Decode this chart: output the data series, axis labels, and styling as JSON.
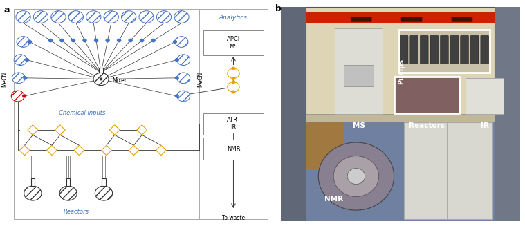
{
  "fig_width": 7.59,
  "fig_height": 3.27,
  "fig_dpi": 100,
  "blue": "#4472c4",
  "orange": "#e8a000",
  "red": "#cc0000",
  "dark": "#333333",
  "gray": "#888888",
  "text_blue": "#4472c4",
  "schematic": {
    "label_a": "a",
    "label_b": "b",
    "analytics": "Analytics",
    "chemical_inputs": "Chemical inputs",
    "reactors": "Reactors",
    "mecn_left": "MeCN",
    "mecn_right": "MeCN",
    "mixer": "Mixer",
    "apci_ms": "APCI\nMS",
    "atr_ir": "ATR-\nIR",
    "nmr_right": "NMR",
    "to_waste": "To waste",
    "nmr_photo": "NMR",
    "ms_photo": "MS",
    "reactors_photo": "Reactors",
    "ir_photo": "IR",
    "pumps_photo": "Pumps"
  }
}
